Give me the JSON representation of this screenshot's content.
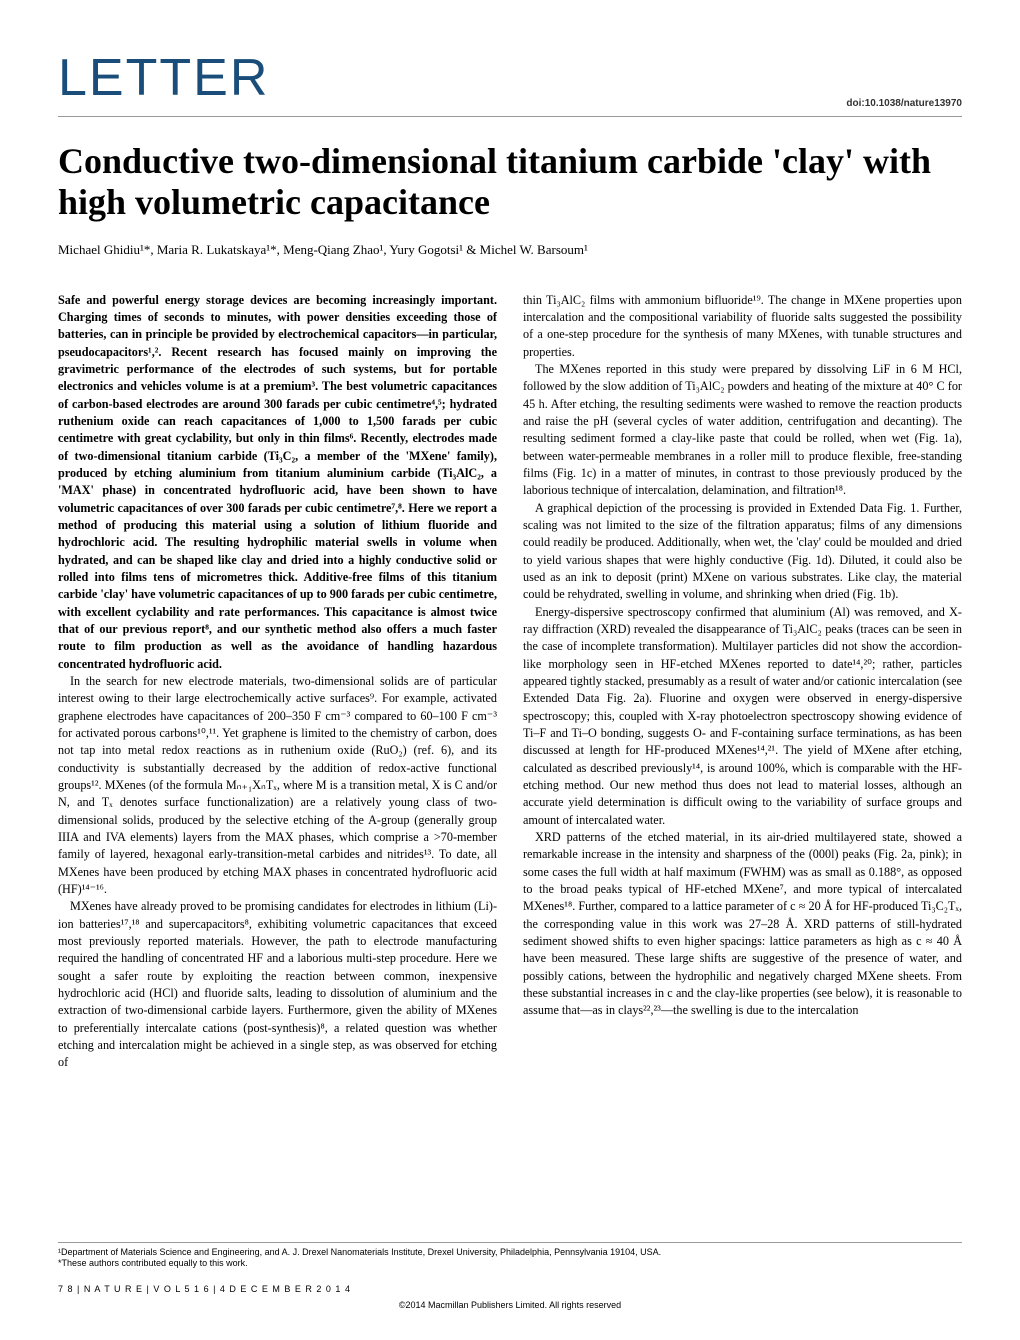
{
  "header": {
    "label": "LETTER",
    "doi": "doi:10.1038/nature13970"
  },
  "title": "Conductive two-dimensional titanium carbide 'clay' with high volumetric capacitance",
  "authors": "Michael Ghidiu¹*, Maria R. Lukatskaya¹*, Meng-Qiang Zhao¹, Yury Gogotsi¹ & Michel W. Barsoum¹",
  "abstract": "Safe and powerful energy storage devices are becoming increasingly important. Charging times of seconds to minutes, with power densities exceeding those of batteries, can in principle be provided by electrochemical capacitors—in particular, pseudocapacitors¹,². Recent research has focused mainly on improving the gravimetric performance of the electrodes of such systems, but for portable electronics and vehicles volume is at a premium³. The best volumetric capacitances of carbon-based electrodes are around 300 farads per cubic centimetre⁴,⁵; hydrated ruthenium oxide can reach capacitances of 1,000 to 1,500 farads per cubic centimetre with great cyclability, but only in thin films⁶. Recently, electrodes made of two-dimensional titanium carbide (Ti₃C₂, a member of the 'MXene' family), produced by etching aluminium from titanium aluminium carbide (Ti₃AlC₂, a 'MAX' phase) in concentrated hydrofluoric acid, have been shown to have volumetric capacitances of over 300 farads per cubic centimetre⁷,⁸. Here we report a method of producing this material using a solution of lithium fluoride and hydrochloric acid. The resulting hydrophilic material swells in volume when hydrated, and can be shaped like clay and dried into a highly conductive solid or rolled into films tens of micrometres thick. Additive-free films of this titanium carbide 'clay' have volumetric capacitances of up to 900 farads per cubic centimetre, with excellent cyclability and rate performances. This capacitance is almost twice that of our previous report⁸, and our synthetic method also offers a much faster route to film production as well as the avoidance of handling hazardous concentrated hydrofluoric acid.",
  "body_left": {
    "p1": "In the search for new electrode materials, two-dimensional solids are of particular interest owing to their large electrochemically active surfaces⁹. For example, activated graphene electrodes have capacitances of 200–350 F cm⁻³ compared to 60–100 F cm⁻³ for activated porous carbons¹⁰,¹¹. Yet graphene is limited to the chemistry of carbon, does not tap into metal redox reactions as in ruthenium oxide (RuO₂) (ref. 6), and its conductivity is substantially decreased by the addition of redox-active functional groups¹². MXenes (of the formula Mₙ₊₁XₙTₓ, where M is a transition metal, X is C and/or N, and Tₓ denotes surface functionalization) are a relatively young class of two-dimensional solids, produced by the selective etching of the A-group (generally group IIIA and IVA elements) layers from the MAX phases, which comprise a >70-member family of layered, hexagonal early-transition-metal carbides and nitrides¹³. To date, all MXenes have been produced by etching MAX phases in concentrated hydrofluoric acid (HF)¹⁴⁻¹⁶.",
    "p2": "MXenes have already proved to be promising candidates for electrodes in lithium (Li)-ion batteries¹⁷,¹⁸ and supercapacitors⁸, exhibiting volumetric capacitances that exceed most previously reported materials. However, the path to electrode manufacturing required the handling of concentrated HF and a laborious multi-step procedure. Here we sought a safer route by exploiting the reaction between common, inexpensive hydrochloric acid (HCl) and fluoride salts, leading to dissolution of aluminium and the extraction of two-dimensional carbide layers. Furthermore, given the ability of MXenes to preferentially intercalate cations (post-synthesis)⁸, a related question was whether etching and intercalation might be achieved in a single step, as was observed for etching of"
  },
  "body_right": {
    "p1b": "thin Ti₃AlC₂ films with ammonium bifluoride¹⁹. The change in MXene properties upon intercalation and the compositional variability of fluoride salts suggested the possibility of a one-step procedure for the synthesis of many MXenes, with tunable structures and properties.",
    "p2": "The MXenes reported in this study were prepared by dissolving LiF in 6 M HCl, followed by the slow addition of Ti₃AlC₂ powders and heating of the mixture at 40° C for 45 h. After etching, the resulting sediments were washed to remove the reaction products and raise the pH (several cycles of water addition, centrifugation and decanting). The resulting sediment formed a clay-like paste that could be rolled, when wet (Fig. 1a), between water-permeable membranes in a roller mill to produce flexible, free-standing films (Fig. 1c) in a matter of minutes, in contrast to those previously produced by the laborious technique of intercalation, delamination, and filtration¹⁸.",
    "p3": "A graphical depiction of the processing is provided in Extended Data Fig. 1. Further, scaling was not limited to the size of the filtration apparatus; films of any dimensions could readily be produced. Additionally, when wet, the 'clay' could be moulded and dried to yield various shapes that were highly conductive (Fig. 1d). Diluted, it could also be used as an ink to deposit (print) MXene on various substrates. Like clay, the material could be rehydrated, swelling in volume, and shrinking when dried (Fig. 1b).",
    "p4": "Energy-dispersive spectroscopy confirmed that aluminium (Al) was removed, and X-ray diffraction (XRD) revealed the disappearance of Ti₃AlC₂ peaks (traces can be seen in the case of incomplete transformation). Multilayer particles did not show the accordion-like morphology seen in HF-etched MXenes reported to date¹⁴,²⁰; rather, particles appeared tightly stacked, presumably as a result of water and/or cationic intercalation (see Extended Data Fig. 2a). Fluorine and oxygen were observed in energy-dispersive spectroscopy; this, coupled with X-ray photoelectron spectroscopy showing evidence of Ti–F and Ti–O bonding, suggests O- and F-containing surface terminations, as has been discussed at length for HF-produced MXenes¹⁴,²¹. The yield of MXene after etching, calculated as described previously¹⁴, is around 100%, which is comparable with the HF-etching method. Our new method thus does not lead to material losses, although an accurate yield determination is difficult owing to the variability of surface groups and amount of intercalated water.",
    "p5": "XRD patterns of the etched material, in its air-dried multilayered state, showed a remarkable increase in the intensity and sharpness of the (000l) peaks (Fig. 2a, pink); in some cases the full width at half maximum (FWHM) was as small as 0.188°, as opposed to the broad peaks typical of HF-etched MXene⁷, and more typical of intercalated MXenes¹⁸. Further, compared to a lattice parameter of c ≈ 20 Å for HF-produced Ti₃C₂Tₓ, the corresponding value in this work was 27–28 Å. XRD patterns of still-hydrated sediment showed shifts to even higher spacings: lattice parameters as high as c ≈ 40 Å have been measured. These large shifts are suggestive of the presence of water, and possibly cations, between the hydrophilic and negatively charged MXene sheets. From these substantial increases in c and the clay-like properties (see below), it is reasonable to assume that—as in clays²²,²³—the swelling is due to the intercalation"
  },
  "footer": {
    "affiliation": "¹Department of Materials Science and Engineering, and A. J. Drexel Nanomaterials Institute, Drexel University, Philadelphia, Pennsylvania 19104, USA.",
    "contrib": "*These authors contributed equally to this work.",
    "pageno": "7 8  |  N A T U R E  |  V O L  5 1 6  |  4  D E C E M B E R  2 0 1 4",
    "copyright": "©2014 Macmillan Publishers Limited. All rights reserved"
  }
}
